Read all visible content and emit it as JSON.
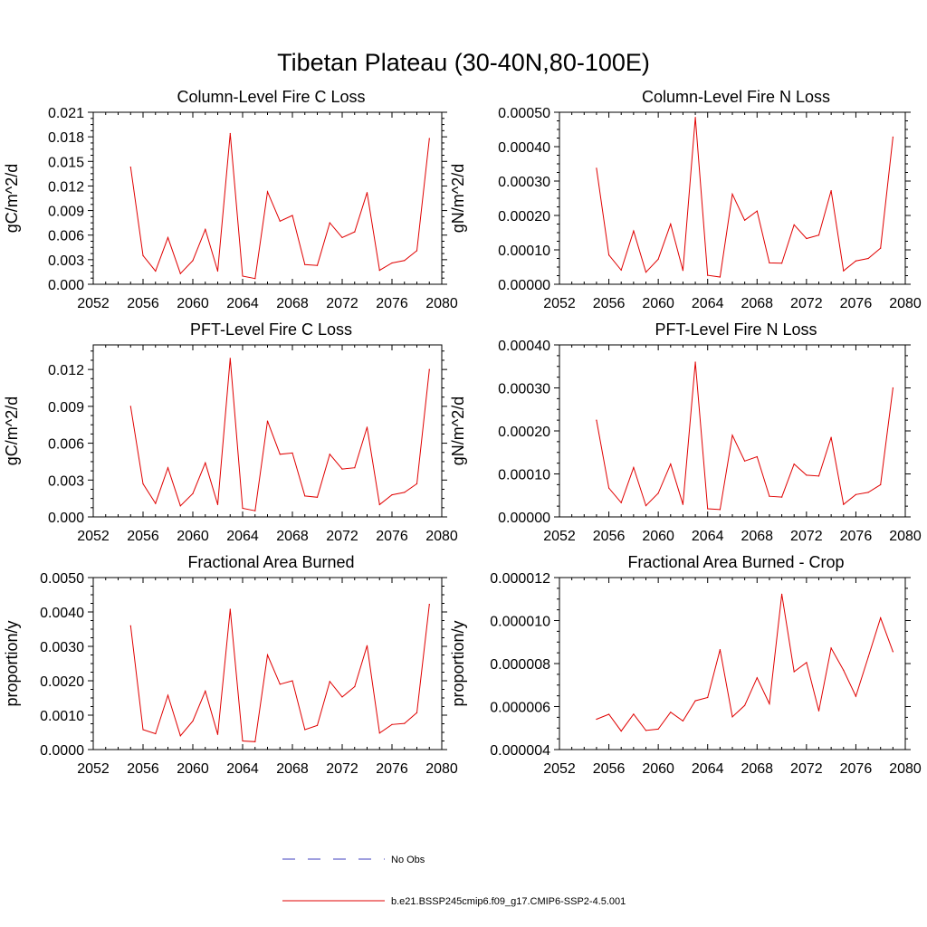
{
  "figure": {
    "title": "Tibetan Plateau (30-40N,80-100E)"
  },
  "legend": [
    {
      "label": "No Obs",
      "color": "#3f3fbf",
      "dash": true
    },
    {
      "label": "b.e21.BSSP245cmip6.f09_g17.CMIP6-SSP2-4.5.001",
      "color": "#e00000",
      "dash": false
    }
  ],
  "series_color": "#e00000",
  "chart_data": [
    {
      "type": "line",
      "title": "Column-Level Fire C Loss",
      "ylabel": "gC/m^2/d",
      "xlim": [
        2052,
        2080
      ],
      "ylim": [
        0,
        0.021
      ],
      "xticks": [
        "2052",
        "2056",
        "2060",
        "2064",
        "2068",
        "2072",
        "2076",
        "2080"
      ],
      "yticks": [
        "0.000",
        "0.003",
        "0.006",
        "0.009",
        "0.012",
        "0.015",
        "0.018",
        "0.021"
      ],
      "x": [
        2055,
        2056,
        2057,
        2058,
        2059,
        2060,
        2061,
        2062,
        2063,
        2064,
        2065,
        2066,
        2067,
        2068,
        2069,
        2070,
        2071,
        2072,
        2073,
        2074,
        2075,
        2076,
        2077,
        2078,
        2079
      ],
      "values": [
        0.0143,
        0.0035,
        0.0016,
        0.0057,
        0.0013,
        0.0029,
        0.0067,
        0.0016,
        0.0184,
        0.001,
        0.0007,
        0.0113,
        0.0077,
        0.0084,
        0.0024,
        0.0023,
        0.0075,
        0.0057,
        0.0064,
        0.0112,
        0.0017,
        0.0026,
        0.0029,
        0.0041,
        0.0178
      ]
    },
    {
      "type": "line",
      "title": "Column-Level Fire N Loss",
      "ylabel": "gN/m^2/d",
      "xlim": [
        2052,
        2080
      ],
      "ylim": [
        0,
        0.0005
      ],
      "xticks": [
        "2052",
        "2056",
        "2060",
        "2064",
        "2068",
        "2072",
        "2076",
        "2080"
      ],
      "yticks": [
        "0.00000",
        "0.00010",
        "0.00020",
        "0.00030",
        "0.00040",
        "0.00050"
      ],
      "x": [
        2055,
        2056,
        2057,
        2058,
        2059,
        2060,
        2061,
        2062,
        2063,
        2064,
        2065,
        2066,
        2067,
        2068,
        2069,
        2070,
        2071,
        2072,
        2073,
        2074,
        2075,
        2076,
        2077,
        2078,
        2079
      ],
      "values": [
        0.000337,
        8.5e-05,
        4.1e-05,
        0.000155,
        3.5e-05,
        7.3e-05,
        0.000175,
        4e-05,
        0.000485,
        2.6e-05,
        2.1e-05,
        0.000262,
        0.000186,
        0.000213,
        6.2e-05,
        6.1e-05,
        0.000173,
        0.000133,
        0.000143,
        0.000272,
        3.9e-05,
        6.8e-05,
        7.5e-05,
        0.000105,
        0.000428
      ]
    },
    {
      "type": "line",
      "title": "PFT-Level Fire C Loss",
      "ylabel": "gC/m^2/d",
      "xlim": [
        2052,
        2080
      ],
      "ylim": [
        0,
        0.014
      ],
      "xticks": [
        "2052",
        "2056",
        "2060",
        "2064",
        "2068",
        "2072",
        "2076",
        "2080"
      ],
      "yticks": [
        "0.000",
        "0.003",
        "0.006",
        "0.009",
        "0.012"
      ],
      "x": [
        2055,
        2056,
        2057,
        2058,
        2059,
        2060,
        2061,
        2062,
        2063,
        2064,
        2065,
        2066,
        2067,
        2068,
        2069,
        2070,
        2071,
        2072,
        2073,
        2074,
        2075,
        2076,
        2077,
        2078,
        2079
      ],
      "values": [
        0.009,
        0.0027,
        0.0011,
        0.004,
        0.0009,
        0.0019,
        0.0044,
        0.001,
        0.0129,
        0.0007,
        0.0005,
        0.0078,
        0.0051,
        0.0052,
        0.0017,
        0.0016,
        0.0051,
        0.0039,
        0.004,
        0.0073,
        0.001,
        0.0018,
        0.002,
        0.0027,
        0.012
      ]
    },
    {
      "type": "line",
      "title": "PFT-Level Fire N Loss",
      "ylabel": "gN/m^2/d",
      "xlim": [
        2052,
        2080
      ],
      "ylim": [
        0,
        0.0004
      ],
      "xticks": [
        "2052",
        "2056",
        "2060",
        "2064",
        "2068",
        "2072",
        "2076",
        "2080"
      ],
      "yticks": [
        "0.00000",
        "0.00010",
        "0.00020",
        "0.00030",
        "0.00040"
      ],
      "x": [
        2055,
        2056,
        2057,
        2058,
        2059,
        2060,
        2061,
        2062,
        2063,
        2064,
        2065,
        2066,
        2067,
        2068,
        2069,
        2070,
        2071,
        2072,
        2073,
        2074,
        2075,
        2076,
        2077,
        2078,
        2079
      ],
      "values": [
        0.000225,
        6.7e-05,
        3.3e-05,
        0.000115,
        2.6e-05,
        5.5e-05,
        0.000123,
        2.9e-05,
        0.00036,
        1.9e-05,
        1.7e-05,
        0.00019,
        0.00013,
        0.00014,
        4.8e-05,
        4.6e-05,
        0.000123,
        9.7e-05,
        9.5e-05,
        0.000185,
        2.9e-05,
        5.2e-05,
        5.7e-05,
        7.5e-05,
        0.0003
      ]
    },
    {
      "type": "line",
      "title": "Fractional Area Burned",
      "ylabel": "proportion/y",
      "xlim": [
        2052,
        2080
      ],
      "ylim": [
        0,
        0.005
      ],
      "xticks": [
        "2052",
        "2056",
        "2060",
        "2064",
        "2068",
        "2072",
        "2076",
        "2080"
      ],
      "yticks": [
        "0.0000",
        "0.0010",
        "0.0020",
        "0.0030",
        "0.0040",
        "0.0050"
      ],
      "x": [
        2055,
        2056,
        2057,
        2058,
        2059,
        2060,
        2061,
        2062,
        2063,
        2064,
        2065,
        2066,
        2067,
        2068,
        2069,
        2070,
        2071,
        2072,
        2073,
        2074,
        2075,
        2076,
        2077,
        2078,
        2079
      ],
      "values": [
        0.0036,
        0.00058,
        0.00046,
        0.00158,
        0.0004,
        0.00083,
        0.0017,
        0.00044,
        0.00408,
        0.00025,
        0.00023,
        0.00275,
        0.0019,
        0.002,
        0.00058,
        0.0007,
        0.00198,
        0.00153,
        0.00183,
        0.00302,
        0.00048,
        0.00073,
        0.00076,
        0.00107,
        0.00422
      ]
    },
    {
      "type": "line",
      "title": "Fractional Area Burned - Crop",
      "ylabel": "proportion/y",
      "xlim": [
        2052,
        2080
      ],
      "ylim": [
        4e-06,
        1.2e-05
      ],
      "xticks": [
        "2052",
        "2056",
        "2060",
        "2064",
        "2068",
        "2072",
        "2076",
        "2080"
      ],
      "yticks": [
        "0.000004",
        "0.000006",
        "0.000008",
        "0.000010",
        "0.000012"
      ],
      "x": [
        2055,
        2056,
        2057,
        2058,
        2059,
        2060,
        2061,
        2062,
        2063,
        2064,
        2065,
        2066,
        2067,
        2068,
        2069,
        2070,
        2071,
        2072,
        2073,
        2074,
        2075,
        2076,
        2077,
        2078,
        2079
      ],
      "values": [
        5.41e-06,
        5.64e-06,
        4.86e-06,
        5.65e-06,
        4.89e-06,
        4.95e-06,
        5.74e-06,
        5.33e-06,
        6.27e-06,
        6.42e-06,
        8.65e-06,
        5.52e-06,
        6.05e-06,
        7.34e-06,
        6.13e-06,
        1.123e-05,
        7.62e-06,
        8.05e-06,
        5.8e-06,
        8.72e-06,
        7.69e-06,
        6.48e-06,
        8.3e-06,
        1.012e-05,
        8.55e-06
      ]
    }
  ]
}
